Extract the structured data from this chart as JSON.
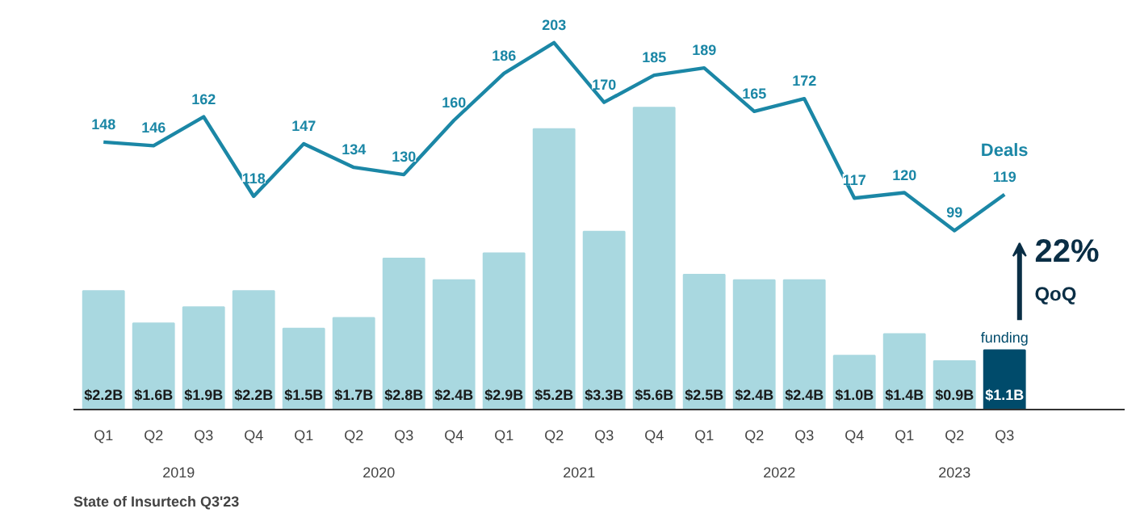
{
  "chart_data": {
    "type": "bar",
    "title": "State of Insurtech Q3'23",
    "categories": [
      "Q1",
      "Q2",
      "Q3",
      "Q4",
      "Q1",
      "Q2",
      "Q3",
      "Q4",
      "Q1",
      "Q2",
      "Q3",
      "Q4",
      "Q1",
      "Q2",
      "Q3",
      "Q4",
      "Q1",
      "Q2",
      "Q3"
    ],
    "series": [
      {
        "name": "funding",
        "colors": [
          "#a9d8e0",
          "#a9d8e0",
          "#a9d8e0",
          "#a9d8e0",
          "#a9d8e0",
          "#a9d8e0",
          "#a9d8e0",
          "#a9d8e0",
          "#a9d8e0",
          "#a9d8e0",
          "#a9d8e0",
          "#a9d8e0",
          "#a9d8e0",
          "#a9d8e0",
          "#a9d8e0",
          "#a9d8e0",
          "#a9d8e0",
          "#a9d8e0",
          "#004b6b"
        ],
        "values": [
          2.2,
          1.6,
          1.9,
          2.2,
          1.5,
          1.7,
          2.8,
          2.4,
          2.9,
          5.2,
          3.3,
          5.6,
          2.5,
          2.4,
          2.4,
          1.0,
          1.4,
          0.9,
          1.1
        ],
        "value_labels": [
          "$2.2B",
          "$1.6B",
          "$1.9B",
          "$2.2B",
          "$1.5B",
          "$1.7B",
          "$2.8B",
          "$2.4B",
          "$2.9B",
          "$5.2B",
          "$3.3B",
          "$5.6B",
          "$2.5B",
          "$2.4B",
          "$2.4B",
          "$1.0B",
          "$1.4B",
          "$0.9B",
          "$1.1B"
        ]
      },
      {
        "type": "line",
        "name": "Deals",
        "color": "#1b87a6",
        "axis": "y2",
        "values": [
          148,
          146,
          162,
          118,
          147,
          134,
          130,
          160,
          186,
          203,
          170,
          185,
          189,
          165,
          172,
          117,
          120,
          99,
          119
        ]
      }
    ],
    "annotations": [
      "2019",
      "2020",
      "2021",
      "2022",
      "2023",
      "22%",
      "QoQ"
    ],
    "data_labels": true,
    "tick_labels": "x",
    "grid": false,
    "marker": "none",
    "line_style": "solid"
  }
}
